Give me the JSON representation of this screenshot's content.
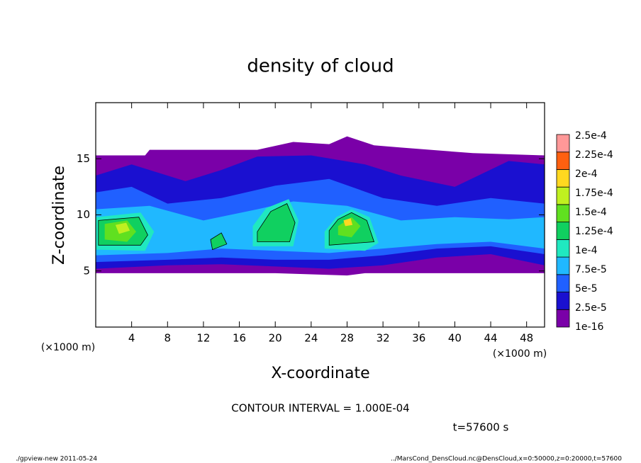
{
  "chart_data": {
    "type": "contour",
    "title": "density of cloud",
    "x_label": "X-coordinate",
    "y_label": "Z-coordinate",
    "x_unit": "(×1000 m)",
    "y_unit": "(×1000 m)",
    "xlim": [
      0,
      50
    ],
    "ylim": [
      0,
      20
    ],
    "xticks": [
      4,
      8,
      12,
      16,
      20,
      24,
      28,
      32,
      36,
      40,
      44,
      48
    ],
    "yticks": [
      5,
      10,
      15
    ],
    "levels": [
      {
        "value": 1e-16,
        "label": "1e-16",
        "color": "#7a00a8"
      },
      {
        "value": 2.5e-05,
        "label": "2.5e-5",
        "color": "#1a10d0"
      },
      {
        "value": 5e-05,
        "label": "5e-5",
        "color": "#2060ff"
      },
      {
        "value": 7.5e-05,
        "label": "7.5e-5",
        "color": "#20b8ff"
      },
      {
        "value": 0.0001,
        "label": "1e-4",
        "color": "#20e8c0"
      },
      {
        "value": 0.000125,
        "label": "1.25e-4",
        "color": "#10d060"
      },
      {
        "value": 0.00015,
        "label": "1.5e-4",
        "color": "#60e020"
      },
      {
        "value": 0.000175,
        "label": "1.75e-4",
        "color": "#c0f020"
      },
      {
        "value": 0.0002,
        "label": "2e-4",
        "color": "#ffd820"
      },
      {
        "value": 0.000225,
        "label": "2.25e-4",
        "color": "#ff6010"
      },
      {
        "value": 0.00025,
        "label": "2.5e-4",
        "color": "#ff9898"
      }
    ],
    "contour_interval": "CONTOUR INTERVAL = 1.000E-04",
    "time": "t=57600 s",
    "footer_left": "./gpview-new  2011-05-24",
    "footer_right": "../MarsCond_DensCloud.nc@DensCloud,x=0:50000,z=0:20000,t=57600"
  }
}
